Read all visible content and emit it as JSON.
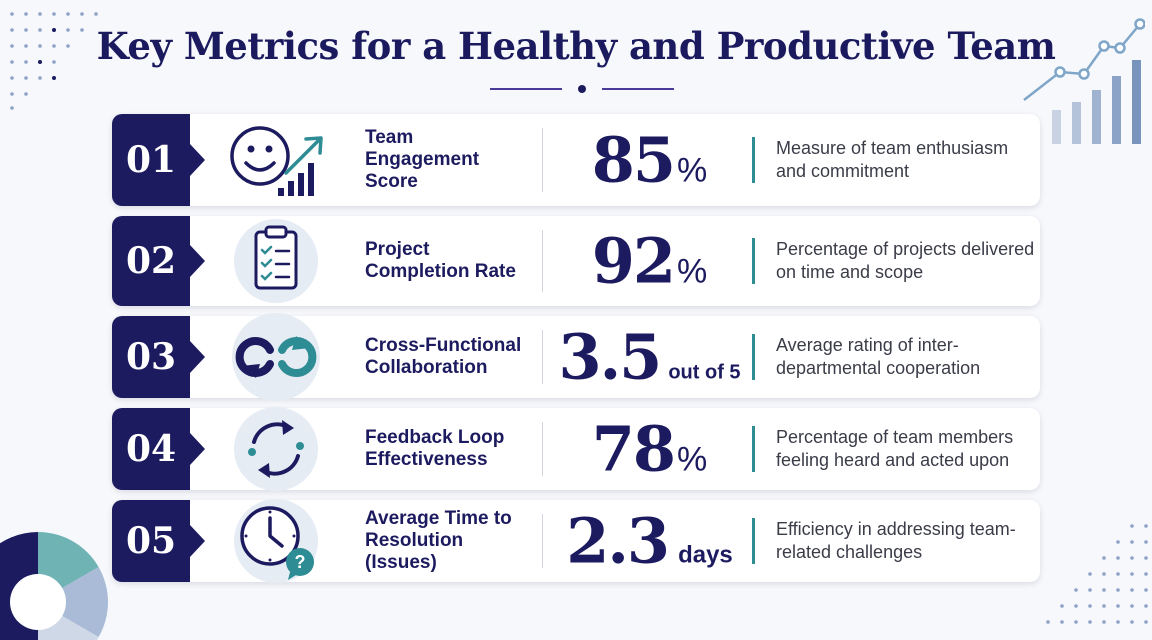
{
  "title": "Key Metrics for a Healthy and Productive Team",
  "colors": {
    "navy": "#1d1b5f",
    "teal": "#2e8c94",
    "light_blue": "#e6ecf4",
    "accent_purple": "#4b3a9a"
  },
  "metrics": [
    {
      "number": "01",
      "icon": "smiley-growth-icon",
      "name": "Team Engagement Score",
      "value": "85",
      "unit": "%",
      "description": "Measure of team enthusiasm and commitment"
    },
    {
      "number": "02",
      "icon": "clipboard-checklist-icon",
      "name": "Project Completion Rate",
      "value": "92",
      "unit": "%",
      "description": "Percentage of projects delivered on time and scope"
    },
    {
      "number": "03",
      "icon": "interlocking-arrows-icon",
      "name": "Cross-Functional Collaboration",
      "value": "3.5",
      "unit": "out of 5",
      "description": "Average rating of inter-departmental cooperation"
    },
    {
      "number": "04",
      "icon": "feedback-cycle-icon",
      "name": "Feedback Loop Effectiveness",
      "value": "78",
      "unit": "%",
      "description": "Percentage of team members feeling heard and acted upon"
    },
    {
      "number": "05",
      "icon": "clock-question-icon",
      "name": "Average Time to Resolution (Issues)",
      "value": "2.3",
      "unit": "days",
      "description": "Efficiency in addressing team-related challenges"
    }
  ]
}
